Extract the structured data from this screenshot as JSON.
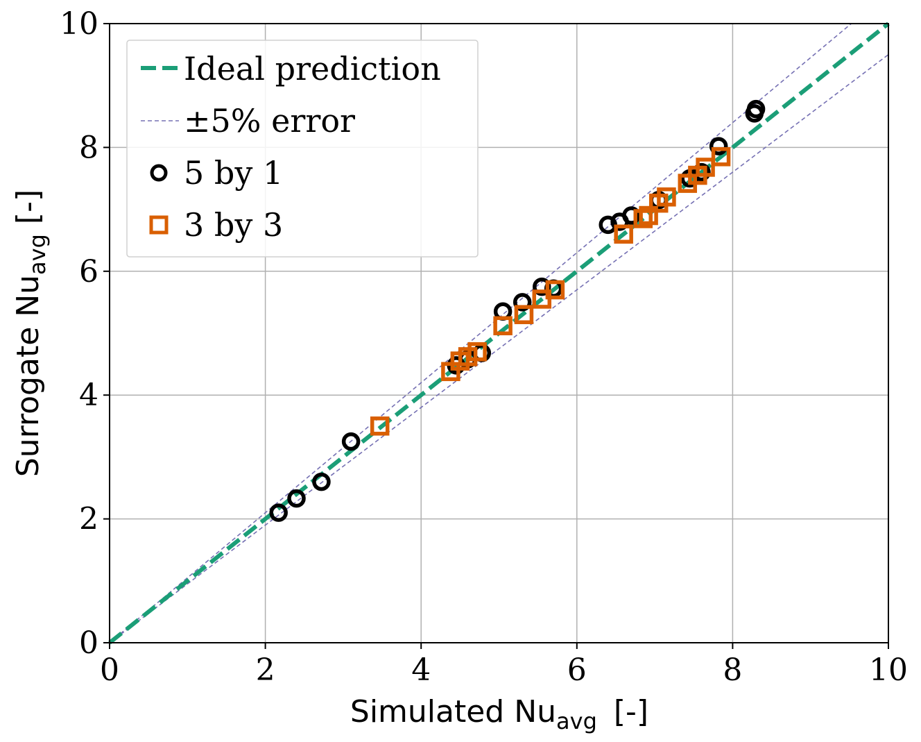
{
  "chart_data": {
    "type": "scatter",
    "title": "",
    "xlabel": {
      "main": "Simulated Nu",
      "sub": "avg",
      "unit": "[-]"
    },
    "ylabel": {
      "main": "Surrogate Nu",
      "sub": "avg",
      "unit": "[-]"
    },
    "xlim": [
      0,
      10
    ],
    "ylim": [
      0,
      10
    ],
    "xticks": [
      0,
      2,
      4,
      6,
      8,
      10
    ],
    "yticks": [
      0,
      2,
      4,
      6,
      8,
      10
    ],
    "grid": true,
    "legend_position": "top-left",
    "lines": [
      {
        "name": "Ideal prediction",
        "x": [
          0,
          10
        ],
        "y": [
          0,
          10
        ],
        "color": "#1b9e77",
        "style": "dashed-thick"
      },
      {
        "name": "±5% error",
        "x": [
          0,
          10
        ],
        "y": [
          0,
          10.5
        ],
        "color": "#7570b3",
        "style": "dashed-thin"
      },
      {
        "name": "",
        "x": [
          0,
          10
        ],
        "y": [
          0,
          9.5
        ],
        "color": "#7570b3",
        "style": "dashed-thin"
      }
    ],
    "series": [
      {
        "name": "5 by 1",
        "marker": "circle",
        "color": "#000000",
        "points": [
          [
            2.17,
            2.1
          ],
          [
            2.4,
            2.33
          ],
          [
            2.72,
            2.6
          ],
          [
            3.1,
            3.25
          ],
          [
            4.45,
            4.48
          ],
          [
            4.6,
            4.58
          ],
          [
            4.78,
            4.68
          ],
          [
            5.05,
            5.35
          ],
          [
            5.3,
            5.5
          ],
          [
            5.55,
            5.75
          ],
          [
            5.7,
            5.72
          ],
          [
            6.4,
            6.75
          ],
          [
            6.55,
            6.8
          ],
          [
            6.7,
            6.9
          ],
          [
            7.05,
            7.15
          ],
          [
            7.45,
            7.5
          ],
          [
            7.6,
            7.6
          ],
          [
            7.82,
            8.02
          ],
          [
            8.28,
            8.55
          ],
          [
            8.3,
            8.62
          ]
        ]
      },
      {
        "name": "3 by 3",
        "marker": "square",
        "color": "#d95f02",
        "points": [
          [
            3.47,
            3.5
          ],
          [
            4.38,
            4.38
          ],
          [
            4.5,
            4.55
          ],
          [
            4.6,
            4.62
          ],
          [
            4.72,
            4.7
          ],
          [
            5.05,
            5.12
          ],
          [
            5.32,
            5.3
          ],
          [
            5.55,
            5.55
          ],
          [
            5.72,
            5.7
          ],
          [
            6.6,
            6.6
          ],
          [
            6.85,
            6.85
          ],
          [
            6.92,
            6.9
          ],
          [
            7.05,
            7.1
          ],
          [
            7.15,
            7.2
          ],
          [
            7.42,
            7.42
          ],
          [
            7.55,
            7.55
          ],
          [
            7.65,
            7.68
          ],
          [
            7.85,
            7.85
          ]
        ]
      }
    ]
  }
}
